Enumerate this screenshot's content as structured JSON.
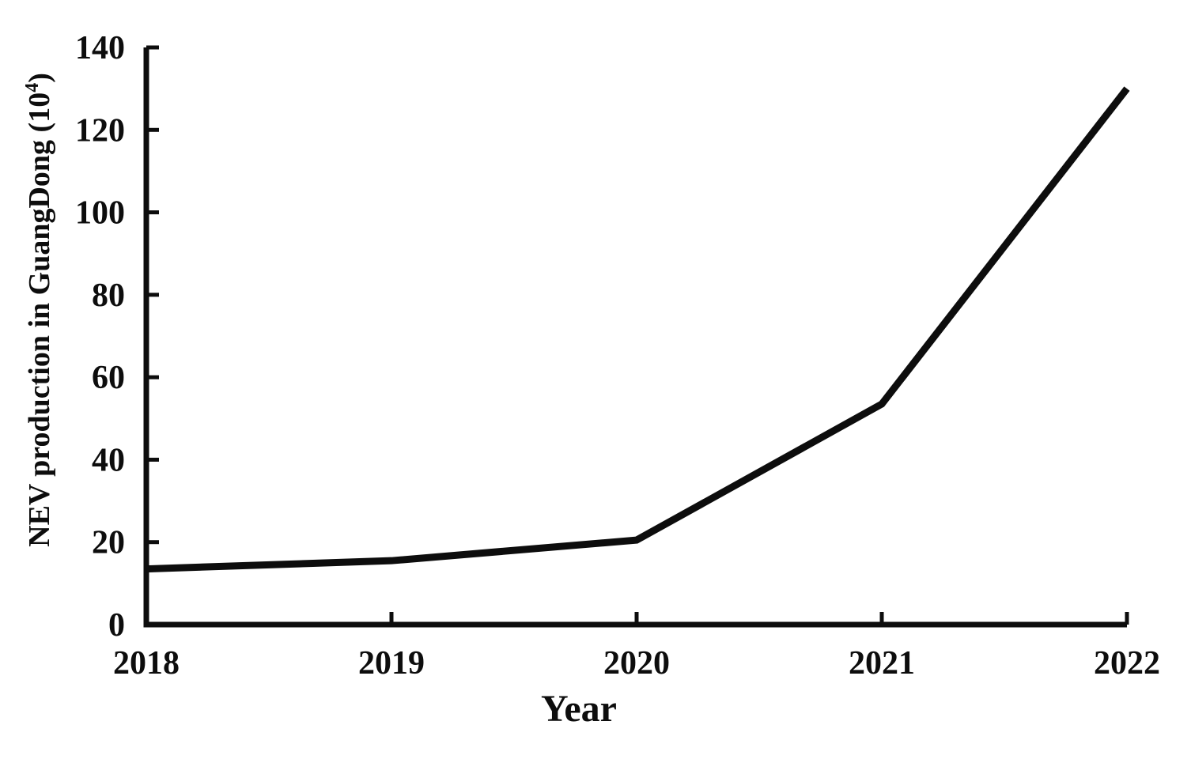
{
  "page": {
    "background_color": "#ffffff",
    "text_color": "#0d0d0d"
  },
  "chart_data": {
    "type": "line",
    "title": "",
    "x": [
      2018,
      2019,
      2020,
      2021,
      2022
    ],
    "series": [
      {
        "name": "NEV production in GuangDong",
        "values": [
          13.5,
          15.5,
          20.5,
          53.5,
          130
        ]
      }
    ],
    "xlabel": "Year",
    "ylabel": "NEV production in GuangDong (10⁴)",
    "ylabel_parts": {
      "prefix": "NEV production in GuangDong (10",
      "superscript": "4",
      "suffix": ")"
    },
    "xlim": [
      2018,
      2022
    ],
    "ylim": [
      0,
      140
    ],
    "x_ticks": [
      "2018",
      "2019",
      "2020",
      "2021",
      "2022"
    ],
    "y_ticks": [
      0,
      20,
      40,
      60,
      80,
      100,
      120,
      140
    ],
    "grid": false,
    "legend": "none",
    "line_color": "#0d0d0d",
    "axis_color": "#0d0d0d"
  }
}
